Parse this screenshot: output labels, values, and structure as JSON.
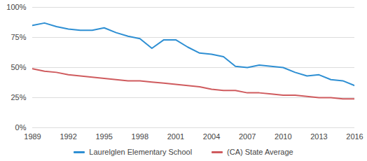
{
  "chart_data": {
    "type": "line",
    "x": [
      1989,
      1990,
      1991,
      1992,
      1993,
      1994,
      1995,
      1996,
      1997,
      1998,
      1999,
      2000,
      2001,
      2002,
      2003,
      2004,
      2005,
      2006,
      2007,
      2008,
      2009,
      2010,
      2011,
      2012,
      2013,
      2014,
      2015,
      2016
    ],
    "series": [
      {
        "name": "Laurelglen Elementary School",
        "color": "#2e8fd3",
        "values": [
          85,
          87,
          84,
          82,
          81,
          81,
          83,
          79,
          76,
          74,
          66,
          73,
          73,
          67,
          62,
          61,
          59,
          51,
          50,
          52,
          51,
          50,
          46,
          43,
          44,
          40,
          39,
          35
        ]
      },
      {
        "name": "(CA) State Average",
        "color": "#cf5b5e",
        "values": [
          49,
          47,
          46,
          44,
          43,
          42,
          41,
          40,
          39,
          39,
          38,
          37,
          36,
          35,
          34,
          32,
          31,
          31,
          29,
          29,
          28,
          27,
          27,
          26,
          25,
          25,
          24,
          24
        ]
      }
    ],
    "xlim": [
      1989,
      2016
    ],
    "xticks": [
      1989,
      1992,
      1995,
      1998,
      2001,
      2004,
      2007,
      2010,
      2013,
      2016
    ],
    "ylim": [
      0,
      100
    ],
    "yticks": [
      {
        "value": 0,
        "label": "0%"
      },
      {
        "value": 25,
        "label": "25%"
      },
      {
        "value": 50,
        "label": "50%"
      },
      {
        "value": 75,
        "label": "75%"
      },
      {
        "value": 100,
        "label": "100%"
      }
    ],
    "grid": true,
    "legend": "bottom"
  }
}
